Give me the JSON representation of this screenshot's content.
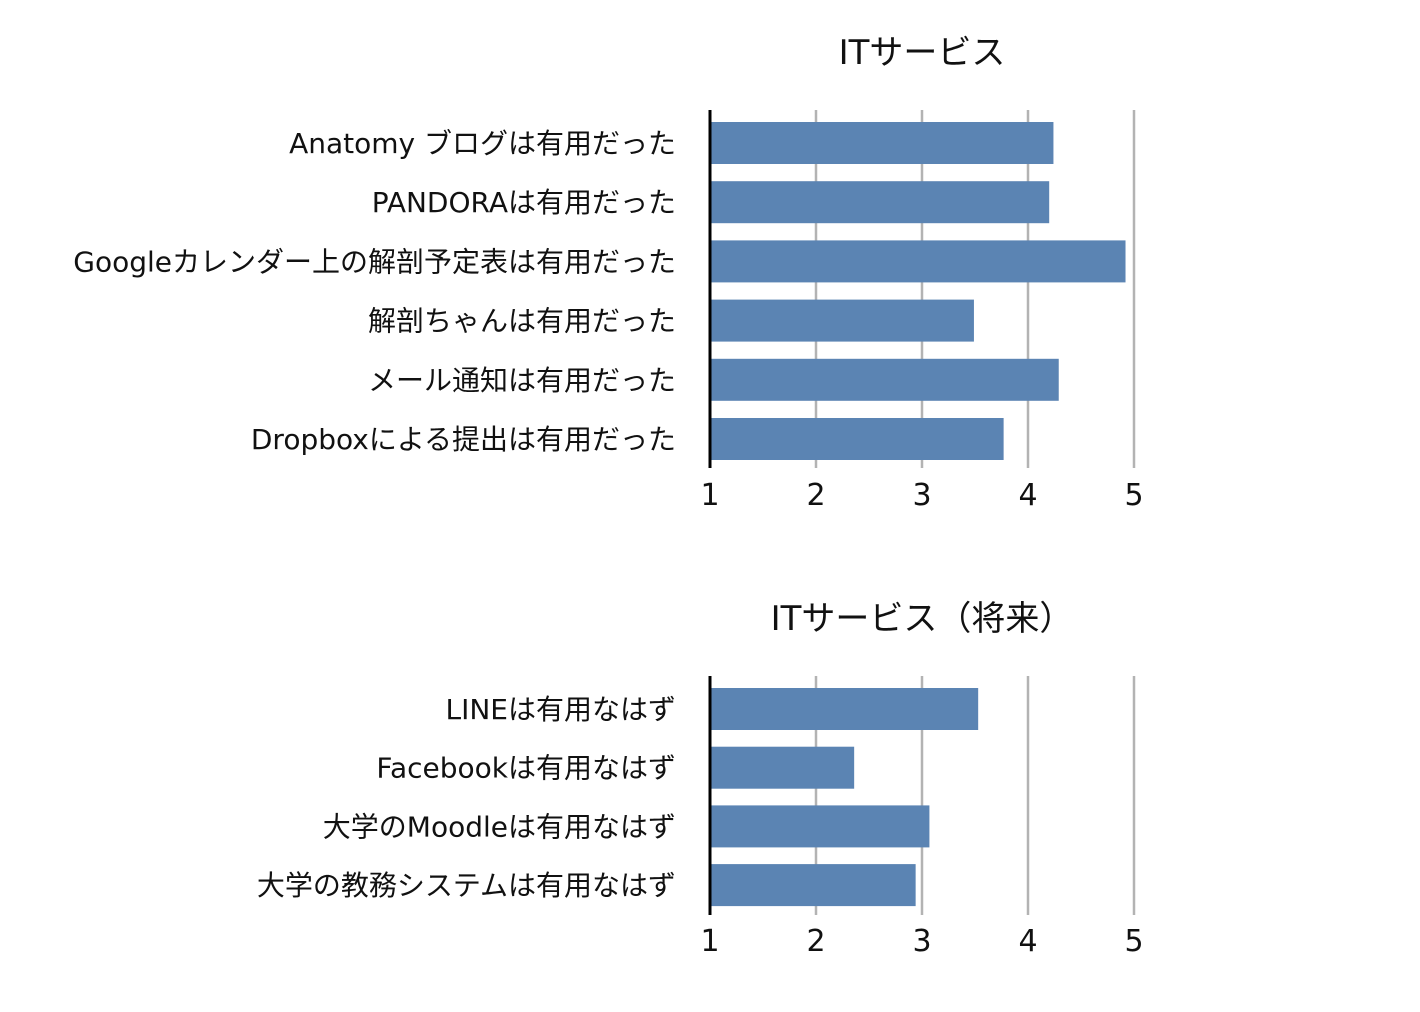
{
  "chart_data": [
    {
      "type": "bar",
      "orientation": "horizontal",
      "title": "ITサービス",
      "xlabel": "",
      "ylabel": "",
      "categories": [
        "Anatomy ブログは有用だった",
        "PANDORAは有用だった",
        "Googleカレンダー上の解剖予定表は有用だった",
        "解剖ちゃんは有用だった",
        "メール通知は有用だった",
        "Dropboxによる提出は有用だった"
      ],
      "values": [
        4.24,
        4.2,
        4.92,
        3.49,
        4.29,
        3.77
      ],
      "xlim": [
        1,
        5
      ],
      "ticks": [
        "1",
        "2",
        "3",
        "4",
        "5"
      ],
      "grid": true,
      "bar_color": "#5b84b3"
    },
    {
      "type": "bar",
      "orientation": "horizontal",
      "title": "ITサービス（将来）",
      "xlabel": "",
      "ylabel": "",
      "categories": [
        "LINEは有用なはず",
        "Facebookは有用なはず",
        "大学のMoodleは有用なはず",
        "大学の教務システムは有用なはず"
      ],
      "values": [
        3.53,
        2.36,
        3.07,
        2.94
      ],
      "xlim": [
        1,
        5
      ],
      "ticks": [
        "1",
        "2",
        "3",
        "4",
        "5"
      ],
      "grid": true,
      "bar_color": "#5b84b3"
    }
  ]
}
